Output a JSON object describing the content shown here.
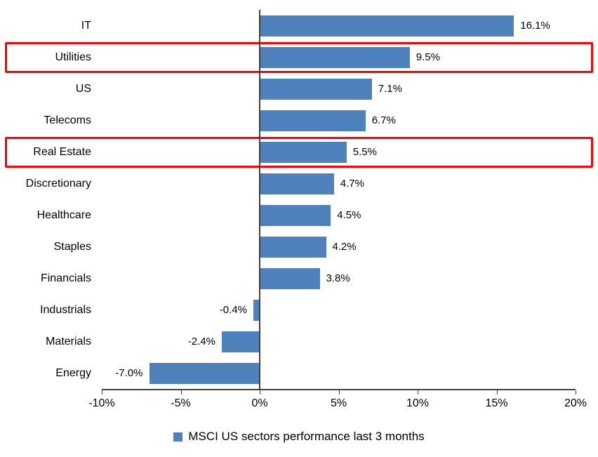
{
  "chart_data": {
    "type": "bar",
    "orientation": "horizontal",
    "title": "",
    "categories": [
      "IT",
      "Utilities",
      "US",
      "Telecoms",
      "Real Estate",
      "Discretionary",
      "Healthcare",
      "Staples",
      "Financials",
      "Industrials",
      "Materials",
      "Energy"
    ],
    "values": [
      16.1,
      9.5,
      7.1,
      6.7,
      5.5,
      4.7,
      4.5,
      4.2,
      3.8,
      -0.4,
      -2.4,
      -7.0
    ],
    "value_labels": [
      "16.1%",
      "9.5%",
      "7.1%",
      "6.7%",
      "5.5%",
      "4.7%",
      "4.5%",
      "4.2%",
      "3.8%",
      "-0.4%",
      "-2.4%",
      "-7.0%"
    ],
    "highlighted_categories": [
      "Utilities",
      "Real Estate"
    ],
    "x_ticks": [
      "-10%",
      "-5%",
      "0%",
      "5%",
      "10%",
      "15%",
      "20%"
    ],
    "x_tick_values": [
      -10,
      -5,
      0,
      5,
      10,
      15,
      20
    ],
    "xlim": [
      -10,
      20
    ],
    "grid": false,
    "legend": "MSCI US sectors performance last 3 months",
    "legend_position": "bottom",
    "bar_color": "#4F81BD",
    "highlight_color": "#FF0000",
    "axis_color": "#404040"
  }
}
